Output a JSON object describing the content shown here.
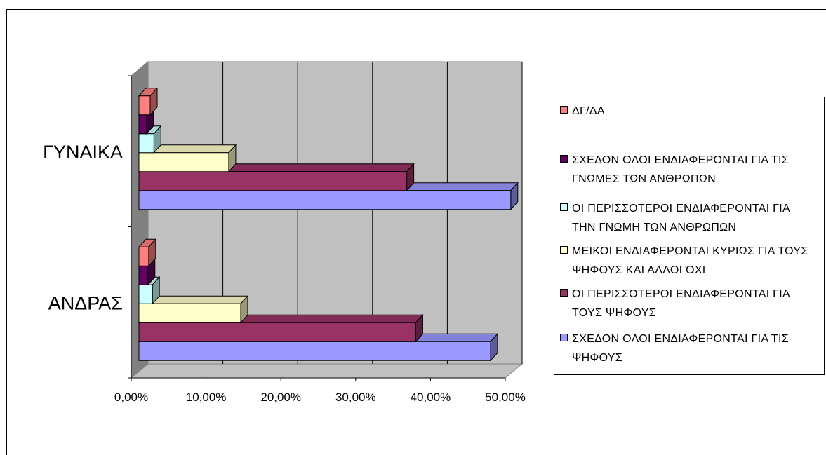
{
  "chart_data": {
    "type": "bar",
    "orientation": "horizontal",
    "style": "3d-clustered",
    "categories": [
      "ΑΝΔΡΑΣ",
      "ΓΥΝΑΙΚΑ"
    ],
    "xlim": [
      0,
      0.5
    ],
    "x_ticks": [
      "0,00%",
      "10,00%",
      "20,00%",
      "30,00%",
      "40,00%",
      "50,00%"
    ],
    "grid": true,
    "legend_position": "right",
    "series": [
      {
        "name": "ΣΧΕΔΟΝ ΟΛΟΙ ΕΝΔΙΑΦΕΡΟΝΤΑΙ ΓΙΑ ΤΙΣ ΨΗΦΟΥΣ",
        "color": "#9999ff",
        "values": [
          0.47,
          0.497
        ]
      },
      {
        "name": "ΟΙ ΠΕΡΙΣΣΟΤΕΡΟΙ ΕΝΔΙΑΦΕΡΟΝΤΑΙ ΓΙΑ ΤΟΥΣ ΨΗΦΟΥΣ",
        "color": "#993366",
        "values": [
          0.37,
          0.358
        ]
      },
      {
        "name": "ΜΕΙΚΟΙ ΕΝΔΙΑΦΕΡΟΝΤΑΙ ΚΥΡΙΩΣ ΓΙΑ ΤΟΥΣ ΨΗΦΟΥΣ ΚΑΙ ΑΛΛΟΙ ΌΧΙ",
        "color": "#ffffcc",
        "values": [
          0.136,
          0.12
        ]
      },
      {
        "name": "ΟΙ ΠΕΡΙΣΣΟΤΕΡΟΙ ΕΝΔΙΑΦΕΡΟΝΤΑΙ ΓΙΑ ΤΗΝ ΓΝΩΜΗ ΤΩΝ ΑΝΘΡΩΠΩΝ",
        "color": "#ccffff",
        "values": [
          0.018,
          0.02
        ]
      },
      {
        "name": "ΣΧΕΔΟΝ ΟΛΟΙ ΕΝΔΙΑΦΕΡΟΝΤΑΙ ΓΙΑ ΤΙΣ ΓΝΩΜΕΣ ΤΩΝ ΑΝΘΡΩΠΩΝ",
        "color": "#660066",
        "values": [
          0.012,
          0.01
        ]
      },
      {
        "name": "ΔΓ/ΔΑ",
        "color": "#ff8080",
        "values": [
          0.013,
          0.015
        ]
      }
    ],
    "legend": [
      {
        "label": "ΔΓ/ΔΑ",
        "color": "#ff8080"
      },
      {
        "label": "ΣΧΕΔΟΝ ΟΛΟΙ ΕΝΔΙΑΦΕΡΟΝΤΑΙ ΓΙΑ ΤΙΣ ΓΝΩΜΕΣ ΤΩΝ ΑΝΘΡΩΠΩΝ",
        "color": "#660066"
      },
      {
        "label": "ΟΙ ΠΕΡΙΣΣΟΤΕΡΟΙ ΕΝΔΙΑΦΕΡΟΝΤΑΙ ΓΙΑ ΤΗΝ ΓΝΩΜΗ ΤΩΝ ΑΝΘΡΩΠΩΝ",
        "color": "#ccffff"
      },
      {
        "label": "ΜΕΙΚΟΙ ΕΝΔΙΑΦΕΡΟΝΤΑΙ ΚΥΡΙΩΣ ΓΙΑ ΤΟΥΣ ΨΗΦΟΥΣ ΚΑΙ ΑΛΛΟΙ ΌΧΙ",
        "color": "#ffffcc"
      },
      {
        "label": "ΟΙ ΠΕΡΙΣΣΟΤΕΡΟΙ ΕΝΔΙΑΦΕΡΟΝΤΑΙ ΓΙΑ ΤΟΥΣ ΨΗΦΟΥΣ",
        "color": "#993366"
      },
      {
        "label": "ΣΧΕΔΟΝ ΟΛΟΙ ΕΝΔΙΑΦΕΡΟΝΤΑΙ ΓΙΑ ΤΙΣ ΨΗΦΟΥΣ",
        "color": "#9999ff"
      }
    ],
    "wall_color": "#c0c0c0",
    "floor_color": "#808080"
  }
}
